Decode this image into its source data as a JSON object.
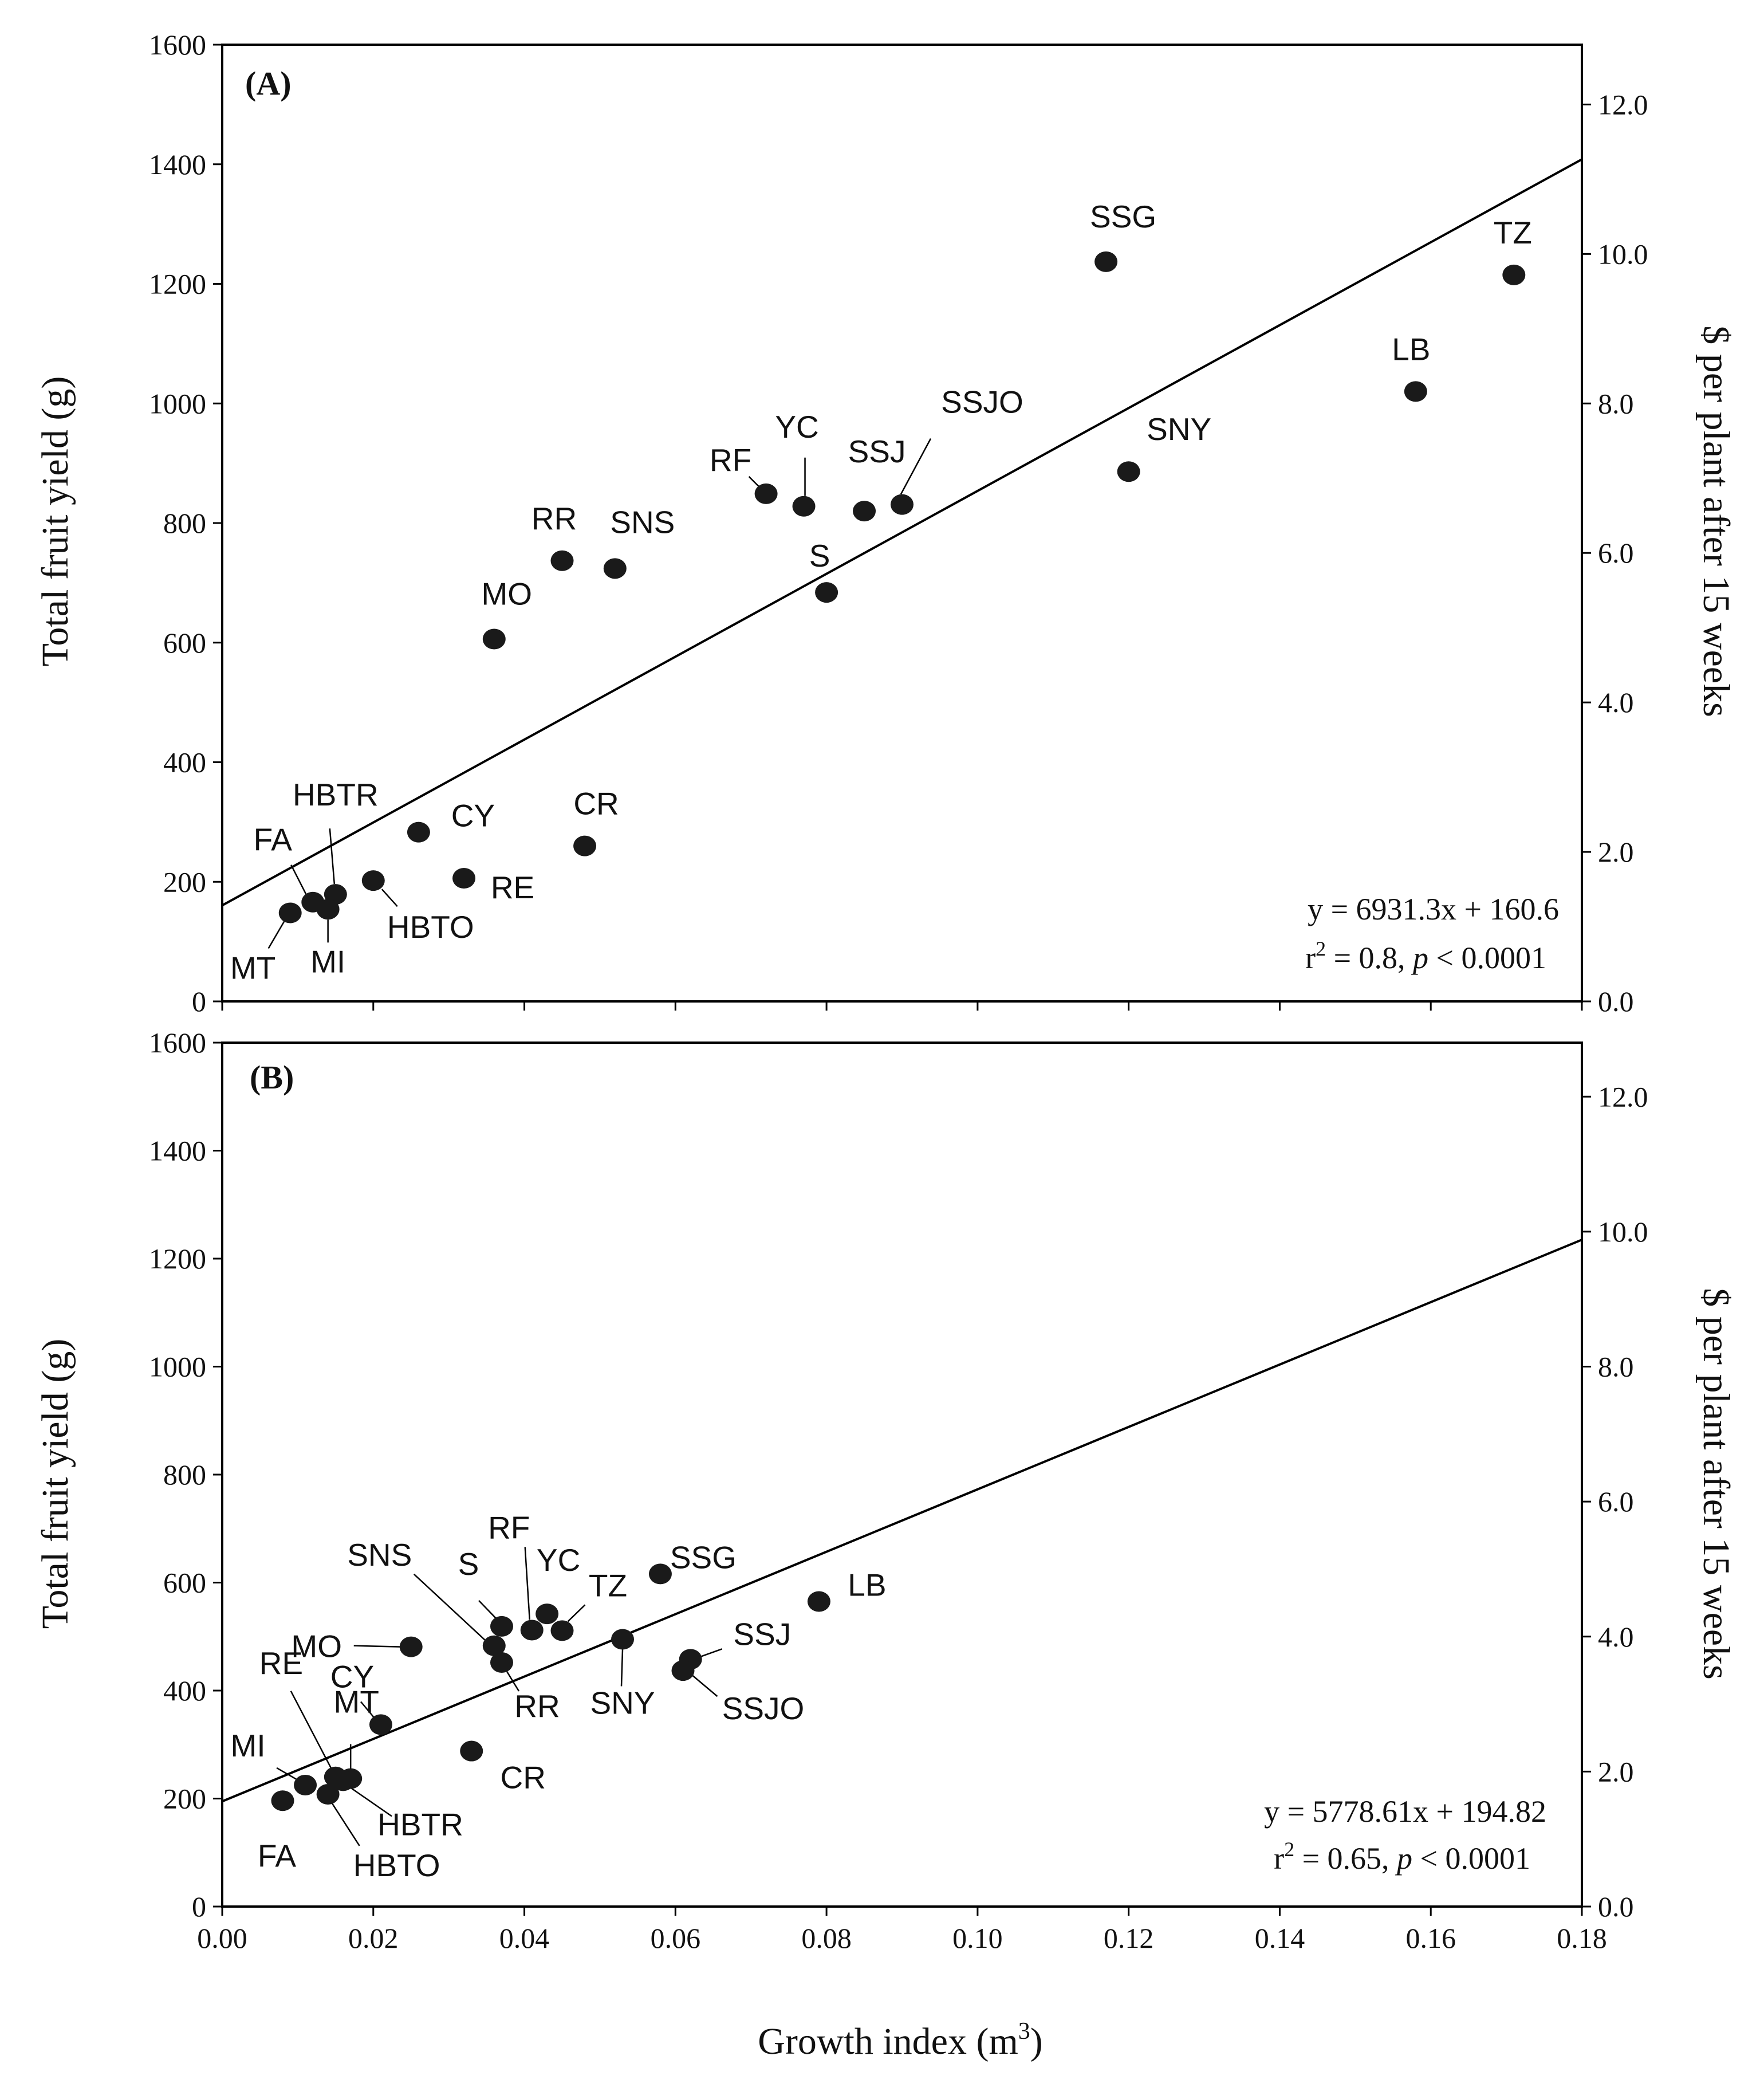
{
  "x_axis_title": "Growth index (m",
  "x_axis_title_sup": "3",
  "x_axis_title_end": ")",
  "x_ticks": [
    "0.00",
    "0.02",
    "0.04",
    "0.06",
    "0.08",
    "0.10",
    "0.12",
    "0.14",
    "0.16",
    "0.18"
  ],
  "y_ticks": [
    "0",
    "200",
    "400",
    "600",
    "800",
    "1000",
    "1200",
    "1400",
    "1600"
  ],
  "y2_ticks": [
    "0.0",
    "2.0",
    "4.0",
    "6.0",
    "8.0",
    "10.0",
    "12.0"
  ],
  "chart_data": [
    {
      "type": "scatter",
      "panel": "(A)",
      "xlabel": "Growth index (m3)",
      "ylabel": "Total fruit yield (g)",
      "y2label": "$ per plant after 15 weeks",
      "xlim": [
        0,
        0.18
      ],
      "ylim": [
        0,
        1600
      ],
      "y2lim": [
        0,
        12.8
      ],
      "equation": "y = 6931.3x + 160.6",
      "r2_text": "r",
      "r2_sup": "2",
      "r2_value": " = 0.8, ",
      "p_label": "p",
      "p_value": " < 0.0001",
      "regression": {
        "slope": 6931.3,
        "intercept": 160.6
      },
      "points": [
        {
          "label": "SSG",
          "x": 0.117,
          "y": 1237
        },
        {
          "label": "TZ",
          "x": 0.171,
          "y": 1215
        },
        {
          "label": "LB",
          "x": 0.158,
          "y": 1020
        },
        {
          "label": "SNY",
          "x": 0.12,
          "y": 886
        },
        {
          "label": "SSJO",
          "x": 0.09,
          "y": 831
        },
        {
          "label": "SSJ",
          "x": 0.085,
          "y": 820
        },
        {
          "label": "YC",
          "x": 0.077,
          "y": 828
        },
        {
          "label": "RF",
          "x": 0.072,
          "y": 849
        },
        {
          "label": "S",
          "x": 0.08,
          "y": 684
        },
        {
          "label": "RR",
          "x": 0.045,
          "y": 737
        },
        {
          "label": "SNS",
          "x": 0.052,
          "y": 724
        },
        {
          "label": "MO",
          "x": 0.036,
          "y": 606
        },
        {
          "label": "CR",
          "x": 0.048,
          "y": 260
        },
        {
          "label": "CY",
          "x": 0.026,
          "y": 283
        },
        {
          "label": "RE",
          "x": 0.032,
          "y": 206
        },
        {
          "label": "HBTO",
          "x": 0.02,
          "y": 202
        },
        {
          "label": "HBTR",
          "x": 0.015,
          "y": 179
        },
        {
          "label": "FA",
          "x": 0.012,
          "y": 166
        },
        {
          "label": "MI",
          "x": 0.014,
          "y": 154
        },
        {
          "label": "MT",
          "x": 0.009,
          "y": 148
        }
      ]
    },
    {
      "type": "scatter",
      "panel": "(B)",
      "xlabel": "Growth index (m3)",
      "ylabel": "Total fruit yield (g)",
      "y2label": "$ per plant after 15 weeks",
      "xlim": [
        0,
        0.18
      ],
      "ylim": [
        0,
        1600
      ],
      "y2lim": [
        0,
        12.8
      ],
      "equation": "y = 5778.61x + 194.82",
      "r2_text": "r",
      "r2_sup": "2",
      "r2_value": " =  0.65, ",
      "p_label": "p",
      "p_value": " < 0.0001",
      "regression": {
        "slope": 5778.61,
        "intercept": 194.82
      },
      "points": [
        {
          "label": "SSG",
          "x": 0.058,
          "y": 616
        },
        {
          "label": "LB",
          "x": 0.079,
          "y": 565
        },
        {
          "label": "SSJ",
          "x": 0.062,
          "y": 458
        },
        {
          "label": "SSJO",
          "x": 0.061,
          "y": 437
        },
        {
          "label": "SNY",
          "x": 0.053,
          "y": 495
        },
        {
          "label": "TZ",
          "x": 0.045,
          "y": 511
        },
        {
          "label": "YC",
          "x": 0.043,
          "y": 542
        },
        {
          "label": "RF",
          "x": 0.041,
          "y": 512
        },
        {
          "label": "S",
          "x": 0.037,
          "y": 519
        },
        {
          "label": "SNS",
          "x": 0.036,
          "y": 483
        },
        {
          "label": "RR",
          "x": 0.037,
          "y": 452
        },
        {
          "label": "MO",
          "x": 0.025,
          "y": 481
        },
        {
          "label": "CY",
          "x": 0.021,
          "y": 337
        },
        {
          "label": "CR",
          "x": 0.033,
          "y": 288
        },
        {
          "label": "RE",
          "x": 0.015,
          "y": 240
        },
        {
          "label": "MT",
          "x": 0.017,
          "y": 237
        },
        {
          "label": "HBTR",
          "x": 0.016,
          "y": 233
        },
        {
          "label": "MI",
          "x": 0.011,
          "y": 225
        },
        {
          "label": "HBTO",
          "x": 0.014,
          "y": 208
        },
        {
          "label": "FA",
          "x": 0.008,
          "y": 196
        }
      ]
    }
  ]
}
